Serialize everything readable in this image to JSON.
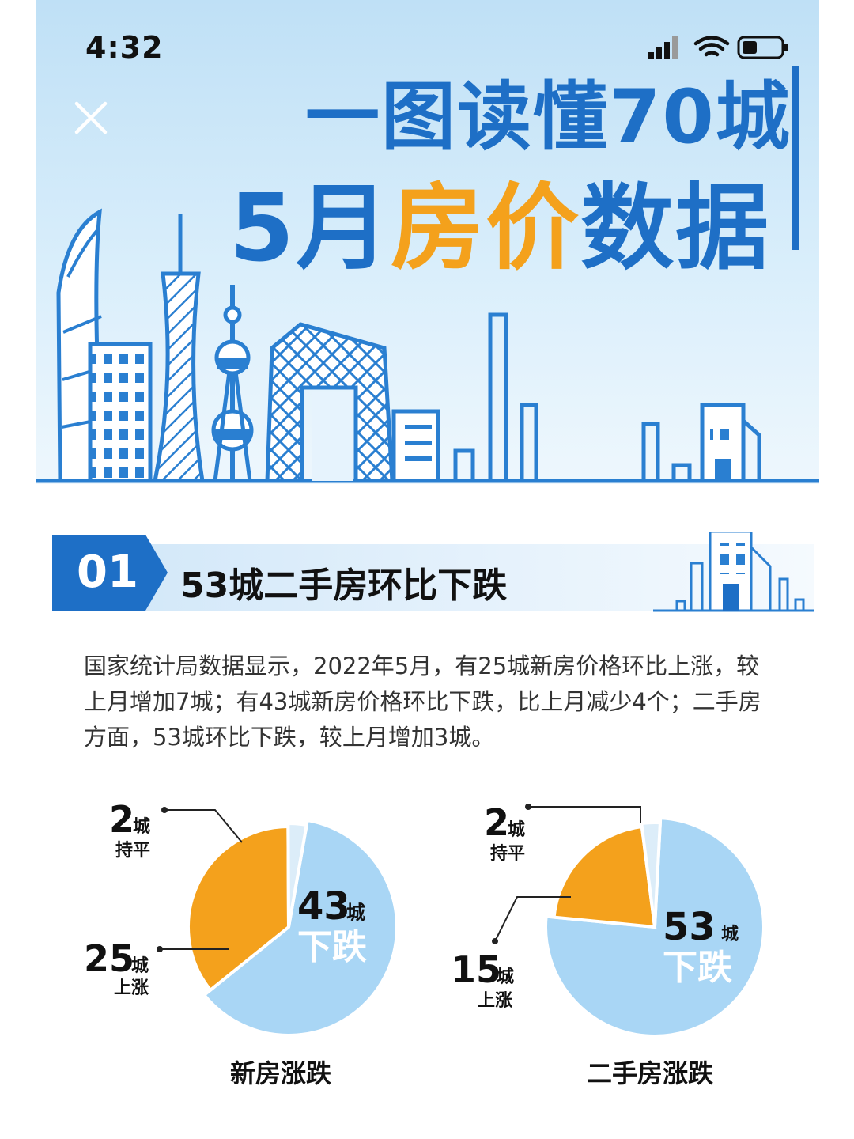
{
  "status_bar": {
    "time": "4:32"
  },
  "banner": {
    "title_line1": "一图读懂70城",
    "title_line2_prefix": "5月",
    "title_line2_highlight": "房价",
    "title_line2_suffix": "数据"
  },
  "section": {
    "number": "01",
    "title": "53城二手房环比下跌"
  },
  "paragraph": "国家统计局数据显示，2022年5月，有25城新房价格环比上涨，较上月增加7城；有43城新房价格环比下跌，比上月减少4个；二手房方面，53城环比下跌，较上月增加3城。",
  "colors": {
    "brand_blue": "#1e6fc6",
    "accent_orange": "#f4a11c",
    "slice_light_blue": "#a9d6f5",
    "slice_pale_blue": "#dcedf9"
  },
  "chart_data": [
    {
      "type": "pie",
      "title": "新房涨跌",
      "unit": "城",
      "slices": [
        {
          "label": "下跌",
          "value": 43,
          "color": "#a9d6f5"
        },
        {
          "label": "上涨",
          "value": 25,
          "color": "#f4a11c"
        },
        {
          "label": "持平",
          "value": 2,
          "color": "#dcedf9"
        }
      ]
    },
    {
      "type": "pie",
      "title": "二手房涨跌",
      "unit": "城",
      "slices": [
        {
          "label": "下跌",
          "value": 53,
          "color": "#a9d6f5"
        },
        {
          "label": "上涨",
          "value": 15,
          "color": "#f4a11c"
        },
        {
          "label": "持平",
          "value": 2,
          "color": "#dcedf9"
        }
      ]
    }
  ]
}
